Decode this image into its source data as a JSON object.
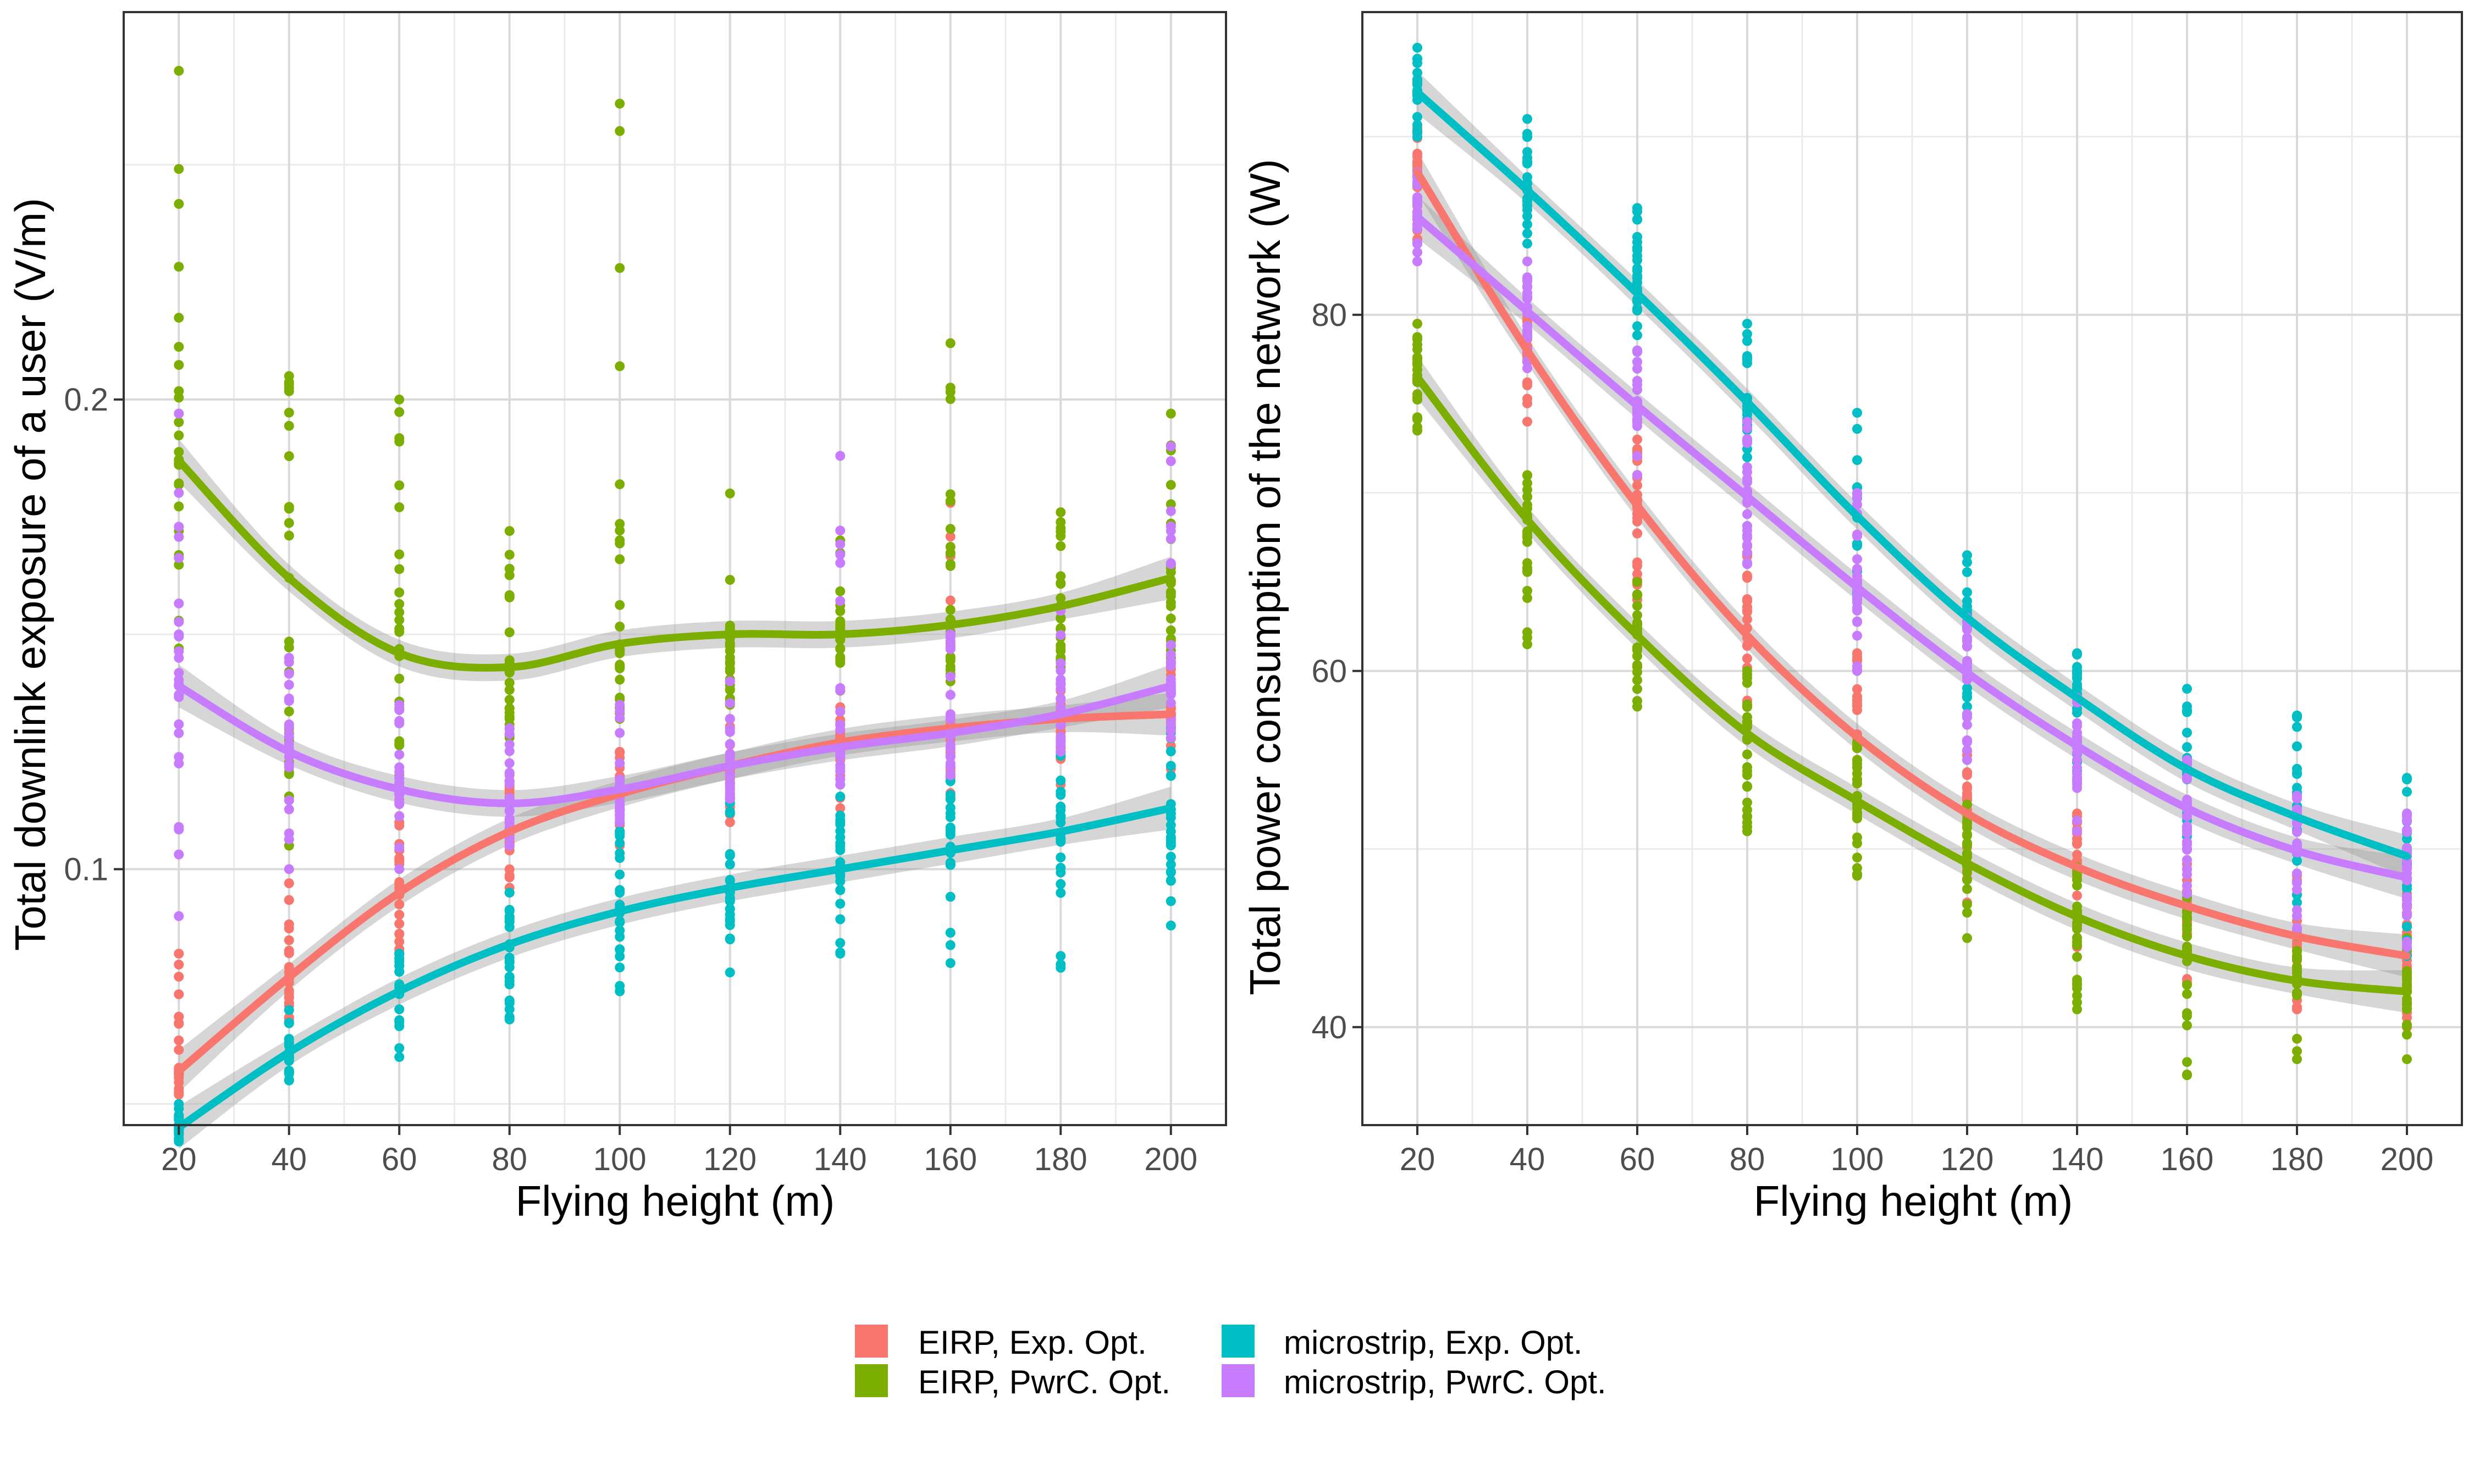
{
  "legend": {
    "position": "bottom",
    "items": [
      {
        "label": "EIRP, Exp. Opt.",
        "color": "#F8766D"
      },
      {
        "label": "EIRP, PwrC. Opt.",
        "color": "#7CAE00"
      },
      {
        "label": "microstrip, Exp. Opt.",
        "color": "#00BFC4"
      },
      {
        "label": "microstrip, PwrC. Opt.",
        "color": "#C77CFF"
      }
    ]
  },
  "chart_data": [
    {
      "type": "scatter",
      "smoothing": "loess with grey confidence band",
      "grid": true,
      "xlabel": "Flying height (m)",
      "ylabel": "Total downlink exposure of a user (V/m)",
      "xlim": [
        10,
        210
      ],
      "ylim": [
        0.0455,
        0.2825
      ],
      "x_ticks": [
        20,
        40,
        60,
        80,
        100,
        120,
        140,
        160,
        180,
        200
      ],
      "x_tick_labels": [
        "20",
        "40",
        "60",
        "80",
        "100",
        "120",
        "140",
        "160",
        "180",
        "200"
      ],
      "y_ticks": [
        0.1,
        0.2
      ],
      "y_tick_labels": [
        "0.1",
        "0.2"
      ],
      "x": [
        20,
        40,
        60,
        80,
        100,
        120,
        140,
        160,
        180,
        200
      ],
      "series": [
        {
          "name": "EIRP, Exp. Opt.",
          "color": "#F8766D",
          "values": [
            0.057,
            0.077,
            0.095,
            0.108,
            0.116,
            0.122,
            0.127,
            0.13,
            0.132,
            0.133
          ],
          "spread": [
            0.052,
            0.082,
            0.068,
            0.097,
            0.082,
            0.11,
            0.095,
            0.12,
            0.105,
            0.125,
            0.11,
            0.132,
            0.113,
            0.138,
            0.115,
            0.178,
            0.118,
            0.147,
            0.12,
            0.145
          ]
        },
        {
          "name": "EIRP, PwrC. Opt.",
          "color": "#7CAE00",
          "values": [
            0.187,
            0.162,
            0.146,
            0.143,
            0.148,
            0.15,
            0.15,
            0.152,
            0.156,
            0.162
          ],
          "spread": [
            0.147,
            0.27,
            0.105,
            0.205,
            0.12,
            0.2,
            0.128,
            0.172,
            0.132,
            0.263,
            0.135,
            0.18,
            0.138,
            0.17,
            0.14,
            0.212,
            0.143,
            0.176,
            0.145,
            0.197
          ]
        },
        {
          "name": "microstrip, Exp. Opt.",
          "color": "#00BFC4",
          "values": [
            0.045,
            0.061,
            0.074,
            0.084,
            0.091,
            0.096,
            0.1,
            0.104,
            0.108,
            0.113
          ],
          "spread": [
            0.042,
            0.05,
            0.055,
            0.07,
            0.06,
            0.082,
            0.068,
            0.095,
            0.074,
            0.11,
            0.078,
            0.115,
            0.082,
            0.118,
            0.08,
            0.12,
            0.079,
            0.125,
            0.088,
            0.13
          ]
        },
        {
          "name": "microstrip, PwrC. Opt.",
          "color": "#C77CFF",
          "values": [
            0.139,
            0.125,
            0.117,
            0.114,
            0.117,
            0.122,
            0.126,
            0.129,
            0.133,
            0.139
          ],
          "spread": [
            0.09,
            0.197,
            0.1,
            0.145,
            0.1,
            0.135,
            0.105,
            0.13,
            0.11,
            0.135,
            0.115,
            0.14,
            0.118,
            0.188,
            0.12,
            0.15,
            0.125,
            0.155,
            0.128,
            0.19
          ]
        }
      ]
    },
    {
      "type": "scatter",
      "smoothing": "loess with grey confidence band",
      "grid": true,
      "xlabel": "Flying height (m)",
      "ylabel": "Total power consumption of the network (W)",
      "xlim": [
        10,
        210
      ],
      "ylim": [
        34.5,
        97
      ],
      "x_ticks": [
        20,
        40,
        60,
        80,
        100,
        120,
        140,
        160,
        180,
        200
      ],
      "x_tick_labels": [
        "20",
        "40",
        "60",
        "80",
        "100",
        "120",
        "140",
        "160",
        "180",
        "200"
      ],
      "y_ticks": [
        40,
        60,
        80
      ],
      "y_tick_labels": [
        "40",
        "60",
        "80"
      ],
      "x": [
        20,
        40,
        60,
        80,
        100,
        120,
        140,
        160,
        180,
        200
      ],
      "series": [
        {
          "name": "EIRP, Exp. Opt.",
          "color": "#F8766D",
          "values": [
            88,
            78,
            69.3,
            62,
            56.3,
            52,
            49,
            46.8,
            45.1,
            44
          ],
          "spread": [
            84,
            90.5,
            74,
            81,
            64,
            73,
            57,
            67,
            52,
            61,
            47,
            55.5,
            44.5,
            52,
            42.5,
            50,
            41,
            48.5,
            40,
            47.5
          ]
        },
        {
          "name": "EIRP, PwrC. Opt.",
          "color": "#7CAE00",
          "values": [
            76.5,
            68.5,
            62,
            56.5,
            52.7,
            49.2,
            46.2,
            44,
            42.6,
            42
          ],
          "spread": [
            73.5,
            79.5,
            61.5,
            71,
            58,
            65,
            51,
            60,
            48.5,
            56,
            45,
            52.5,
            41,
            49,
            37.3,
            47.5,
            38.2,
            45.5,
            38.2,
            45
          ]
        },
        {
          "name": "microstrip, Exp. Opt.",
          "color": "#00BFC4",
          "values": [
            92.5,
            87,
            81.2,
            75.1,
            68.7,
            63,
            58.5,
            54.5,
            51.8,
            49.6
          ],
          "spread": [
            90,
            95,
            84,
            91,
            78,
            86,
            72,
            79.5,
            64,
            74.5,
            58,
            66.5,
            54,
            61,
            50,
            59,
            47,
            57.5,
            44,
            54
          ]
        },
        {
          "name": "microstrip, PwrC. Opt.",
          "color": "#C77CFF",
          "values": [
            85.5,
            80.2,
            74.9,
            69.8,
            64.7,
            59.9,
            55.8,
            52.3,
            49.9,
            48.4
          ],
          "spread": [
            83,
            88,
            77,
            83,
            71,
            78,
            66,
            74,
            60,
            70,
            55,
            63,
            51,
            58.5,
            47.5,
            55,
            45.5,
            53,
            44.5,
            52
          ]
        }
      ]
    }
  ]
}
